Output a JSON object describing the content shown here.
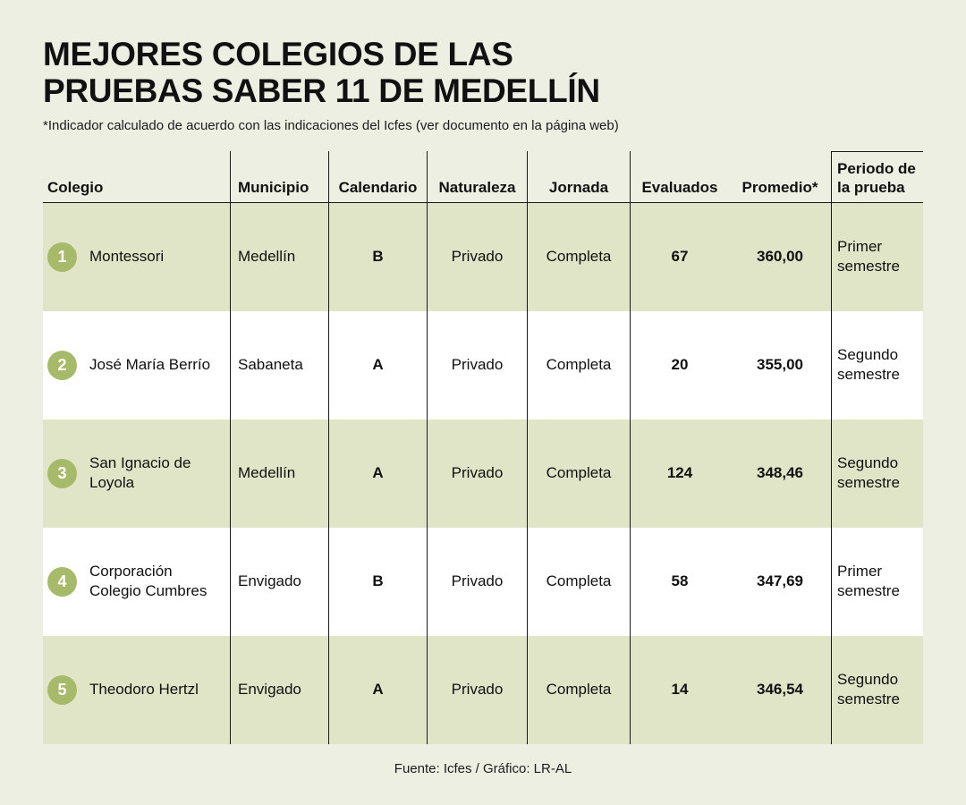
{
  "header": {
    "title_line1": "MEJORES COLEGIOS DE LAS",
    "title_line2": "PRUEBAS SABER 11 DE MEDELLÍN",
    "subtitle": "*Indicador calculado de acuerdo con las indicaciones del Icfes (ver documento en la página web)"
  },
  "footer": {
    "source": "Fuente: Icfes / Gráfico: LR-AL"
  },
  "colors": {
    "background": "#edefe3",
    "row_shaded": "#dfe5c6",
    "row_white": "#ffffff",
    "badge": "#a6ba69",
    "text": "#111111",
    "line": "#1a1a1a"
  },
  "table": {
    "headers": [
      "Colegio",
      "Municipio",
      "Calendario",
      "Naturaleza",
      "Jornada",
      "Evaluados",
      "Promedio*",
      "Periodo de la prueba"
    ],
    "rows": [
      {
        "rank": "1",
        "colegio": "Montessori",
        "municipio": "Medellín",
        "calendario": "B",
        "naturaleza": "Privado",
        "jornada": "Completa",
        "evaluados": "67",
        "promedio": "360,00",
        "periodo": "Primer semestre"
      },
      {
        "rank": "2",
        "colegio": "José María Berrío",
        "municipio": "Sabaneta",
        "calendario": "A",
        "naturaleza": "Privado",
        "jornada": "Completa",
        "evaluados": "20",
        "promedio": "355,00",
        "periodo": "Segundo semestre"
      },
      {
        "rank": "3",
        "colegio": "San Ignacio de Loyola",
        "municipio": "Medellín",
        "calendario": "A",
        "naturaleza": "Privado",
        "jornada": "Completa",
        "evaluados": "124",
        "promedio": "348,46",
        "periodo": "Segundo semestre"
      },
      {
        "rank": "4",
        "colegio": "Corporación Colegio Cumbres",
        "municipio": "Envigado",
        "calendario": "B",
        "naturaleza": "Privado",
        "jornada": "Completa",
        "evaluados": "58",
        "promedio": "347,69",
        "periodo": "Primer semestre"
      },
      {
        "rank": "5",
        "colegio": "Theodoro Hertzl",
        "municipio": "Envigado",
        "calendario": "A",
        "naturaleza": "Privado",
        "jornada": "Completa",
        "evaluados": "14",
        "promedio": "346,54",
        "periodo": "Segundo semestre"
      }
    ]
  },
  "chart_data": {
    "type": "table",
    "title": "Mejores colegios de las Pruebas Saber 11 de Medellín",
    "note": "*Indicador calculado de acuerdo con las indicaciones del Icfes (ver documento en la página web)",
    "source": "Fuente: Icfes / Gráfico: LR-AL",
    "columns": [
      "Rank",
      "Colegio",
      "Municipio",
      "Calendario",
      "Naturaleza",
      "Jornada",
      "Evaluados",
      "Promedio*",
      "Periodo de la prueba"
    ],
    "rows": [
      [
        1,
        "Montessori",
        "Medellín",
        "B",
        "Privado",
        "Completa",
        67,
        "360,00",
        "Primer semestre"
      ],
      [
        2,
        "José María Berrío",
        "Sabaneta",
        "A",
        "Privado",
        "Completa",
        20,
        "355,00",
        "Segundo semestre"
      ],
      [
        3,
        "San Ignacio de Loyola",
        "Medellín",
        "A",
        "Privado",
        "Completa",
        124,
        "348,46",
        "Segundo semestre"
      ],
      [
        4,
        "Corporación Colegio Cumbres",
        "Envigado",
        "B",
        "Privado",
        "Completa",
        58,
        "347,69",
        "Primer semestre"
      ],
      [
        5,
        "Theodoro Hertzl",
        "Envigado",
        "A",
        "Privado",
        "Completa",
        14,
        "346,54",
        "Segundo semestre"
      ]
    ]
  }
}
